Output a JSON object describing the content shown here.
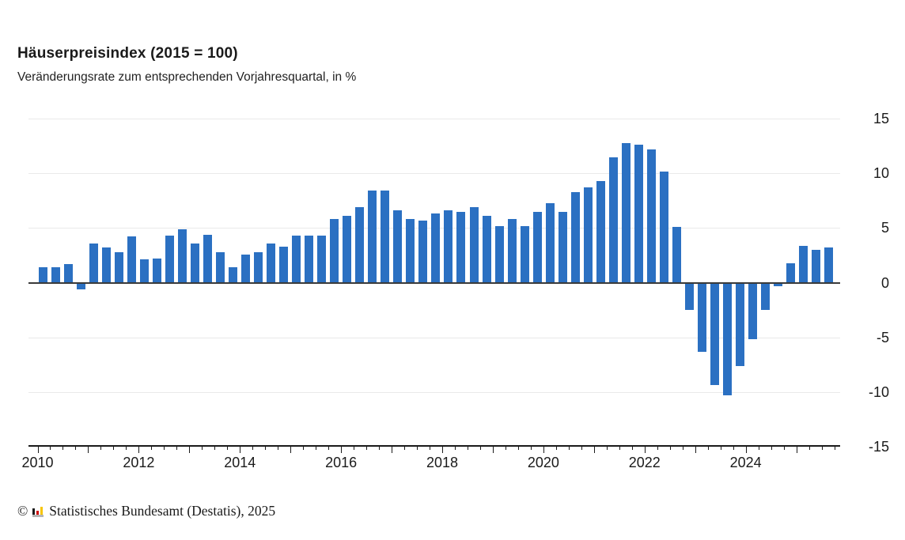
{
  "header": {
    "title": "Häuserpreisindex (2015 = 100)",
    "subtitle": "Veränderungsrate zum entsprechenden Vorjahresquartal, in %"
  },
  "chart_data": {
    "type": "bar",
    "title": "Häuserpreisindex (2015 = 100)",
    "subtitle": "Veränderungsrate zum entsprechenden Vorjahresquartal, in %",
    "unit": "percent change year-over-year, quarterly",
    "categories": [
      "2010-Q1",
      "2010-Q2",
      "2010-Q3",
      "2010-Q4",
      "2011-Q1",
      "2011-Q2",
      "2011-Q3",
      "2011-Q4",
      "2012-Q1",
      "2012-Q2",
      "2012-Q3",
      "2012-Q4",
      "2013-Q1",
      "2013-Q2",
      "2013-Q3",
      "2013-Q4",
      "2014-Q1",
      "2014-Q2",
      "2014-Q3",
      "2014-Q4",
      "2015-Q1",
      "2015-Q2",
      "2015-Q3",
      "2015-Q4",
      "2016-Q1",
      "2016-Q2",
      "2016-Q3",
      "2016-Q4",
      "2017-Q1",
      "2017-Q2",
      "2017-Q3",
      "2017-Q4",
      "2018-Q1",
      "2018-Q2",
      "2018-Q3",
      "2018-Q4",
      "2019-Q1",
      "2019-Q2",
      "2019-Q3",
      "2019-Q4",
      "2020-Q1",
      "2020-Q2",
      "2020-Q3",
      "2020-Q4",
      "2021-Q1",
      "2021-Q2",
      "2021-Q3",
      "2021-Q4",
      "2022-Q1",
      "2022-Q2",
      "2022-Q3",
      "2022-Q4",
      "2023-Q1",
      "2023-Q2",
      "2023-Q3",
      "2023-Q4",
      "2024-Q1",
      "2024-Q2",
      "2024-Q3",
      "2024-Q4",
      "2025-Q1",
      "2025-Q2",
      "2025-Q3"
    ],
    "values": [
      1.4,
      1.4,
      1.7,
      -0.6,
      3.6,
      3.2,
      2.8,
      4.2,
      2.1,
      2.2,
      4.3,
      4.9,
      3.6,
      4.4,
      2.8,
      1.4,
      2.6,
      2.8,
      3.6,
      3.3,
      4.3,
      4.3,
      4.3,
      5.8,
      6.1,
      6.9,
      8.4,
      8.4,
      6.6,
      5.8,
      5.7,
      6.3,
      6.6,
      6.5,
      6.9,
      6.1,
      5.2,
      5.8,
      5.2,
      6.5,
      7.3,
      6.5,
      8.3,
      8.7,
      9.3,
      11.5,
      12.8,
      12.6,
      12.2,
      10.2,
      5.1,
      -2.5,
      -6.3,
      -9.4,
      -10.3,
      -7.6,
      -5.2,
      -2.5,
      -0.3,
      1.8,
      3.4,
      3.0,
      3.2
    ],
    "xlabel": "",
    "ylabel": "",
    "ylim": [
      -15,
      15
    ],
    "yticks": [
      15,
      10,
      5,
      0,
      -5,
      -10,
      -15
    ],
    "ytick_labels": [
      "15",
      "10",
      "5",
      "0",
      "-5",
      "-10",
      "-15"
    ],
    "xtick_years": [
      2010,
      2011,
      2012,
      2013,
      2014,
      2015,
      2016,
      2017,
      2018,
      2019,
      2020,
      2021,
      2022,
      2023,
      2024,
      2025
    ],
    "xtick_labels": [
      "2010",
      "2012",
      "2014",
      "2016",
      "2018",
      "2020",
      "2022",
      "2024"
    ],
    "minor_ticks": "quarterly",
    "grid": "horizontal",
    "legend": "none",
    "bar_color": "#2b70c2",
    "zero_line_color": "#3a3a3a",
    "grid_color": "#e9e9e9"
  },
  "footer": {
    "copyright_symbol": "©",
    "logo": "destatis-logo",
    "text": "Statistisches Bundesamt (Destatis), 2025"
  }
}
